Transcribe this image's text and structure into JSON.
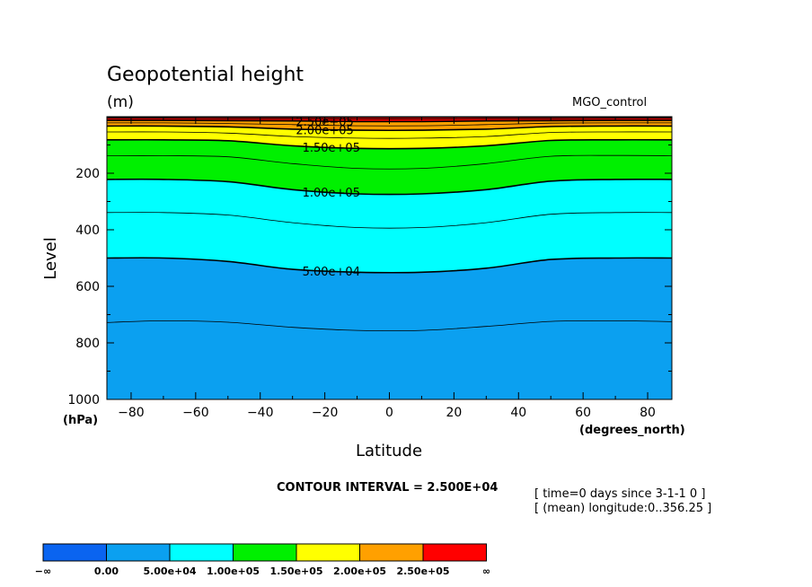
{
  "chart_data": {
    "type": "contour",
    "title": "Geopotential height",
    "units": "(m)",
    "dataset": "MGO_control",
    "xlabel": "Latitude",
    "x_unit_label": "(degrees_north)",
    "ylabel": "Level",
    "y_unit_label": "(hPa)",
    "xlim": [
      -87.5,
      87.5
    ],
    "ylim": [
      1000,
      0
    ],
    "y_top": 0,
    "x_ticks": [
      -80,
      -60,
      -40,
      -20,
      0,
      20,
      40,
      60,
      80
    ],
    "x_tick_labels": [
      "−80",
      "−60",
      "−40",
      "−20",
      "0",
      "20",
      "40",
      "60",
      "80"
    ],
    "y_ticks": [
      200,
      400,
      600,
      800,
      1000
    ],
    "y_tick_labels": [
      "200",
      "400",
      "600",
      "800",
      "1000"
    ],
    "fill_levels": [
      0,
      50000,
      100000,
      150000,
      200000,
      250000
    ],
    "fill_colors": [
      "#0a64f0",
      "#0ba0f0",
      "#00ffff",
      "#00f000",
      "#ffff00",
      "#ffa000",
      "#ff0000"
    ],
    "profile_lat": [
      -87.5,
      -70,
      -50,
      -30,
      -10,
      10,
      30,
      50,
      70,
      87.5
    ],
    "contours": [
      {
        "value": 25000,
        "label": "",
        "bold": false,
        "p": [
          728,
          722,
          727,
          745,
          756,
          756,
          742,
          724,
          722,
          725
        ]
      },
      {
        "value": 50000,
        "label": "5.00e+04",
        "bold": true,
        "p": [
          500,
          500,
          512,
          540,
          550,
          550,
          536,
          505,
          500,
          500
        ]
      },
      {
        "value": 75000,
        "label": "",
        "bold": false,
        "p": [
          339,
          339,
          348,
          375,
          392,
          392,
          375,
          345,
          339,
          339
        ]
      },
      {
        "value": 100000,
        "label": "1.00e+05",
        "bold": true,
        "p": [
          222,
          222,
          230,
          258,
          273,
          273,
          258,
          228,
          222,
          222
        ]
      },
      {
        "value": 125000,
        "label": "",
        "bold": false,
        "p": [
          138,
          138,
          142,
          166,
          183,
          183,
          166,
          140,
          137,
          138
        ]
      },
      {
        "value": 150000,
        "label": "1.50e+05",
        "bold": true,
        "p": [
          82,
          82,
          85,
          103,
          112,
          112,
          103,
          84,
          82,
          82
        ]
      },
      {
        "value": 175000,
        "label": "",
        "bold": false,
        "p": [
          54,
          54,
          58,
          70,
          76,
          76,
          70,
          56,
          54,
          54
        ]
      },
      {
        "value": 200000,
        "label": "2.00e+05",
        "bold": true,
        "p": [
          33,
          33,
          36,
          44,
          48,
          48,
          44,
          35,
          33,
          33
        ]
      },
      {
        "value": 225000,
        "label": "",
        "bold": false,
        "p": [
          22,
          22,
          24,
          28,
          32,
          32,
          28,
          23,
          22,
          22
        ]
      },
      {
        "value": 250000,
        "label": "2.50e+05",
        "bold": true,
        "p": [
          13,
          13,
          14,
          15,
          17,
          17,
          15,
          14,
          13,
          13
        ]
      },
      {
        "value": 275000,
        "label": "",
        "bold": false,
        "p": [
          6,
          6,
          7,
          7,
          8,
          8,
          7,
          7,
          6,
          6
        ]
      },
      {
        "value": 300000,
        "label": "",
        "bold": false,
        "p": [
          3,
          3,
          3,
          3,
          3,
          3,
          3,
          3,
          3,
          3
        ]
      }
    ],
    "label_positions": [
      {
        "label": "5.00e+04",
        "lat": -18
      },
      {
        "label": "1.00e+05",
        "lat": -18
      },
      {
        "label": "1.50e+05",
        "lat": -18
      },
      {
        "label": "2.00e+05",
        "lat": -20
      },
      {
        "label": "2.50e+05",
        "lat": -20
      }
    ],
    "contour_interval_text": "CONTOUR INTERVAL = 2.500E+04",
    "info_lines": [
      "[ time=0 days since 3-1-1 0 ]",
      "[ (mean) longitude:0..356.25 ]"
    ],
    "colorbar": {
      "labels": [
        "−∞",
        "0.00",
        "5.00e+04",
        "1.00e+05",
        "1.50e+05",
        "2.00e+05",
        "2.50e+05",
        "∞"
      ],
      "colors": [
        "#0a64f0",
        "#0ba0f0",
        "#00ffff",
        "#00f000",
        "#ffff00",
        "#ffa000",
        "#ff0000"
      ]
    }
  }
}
